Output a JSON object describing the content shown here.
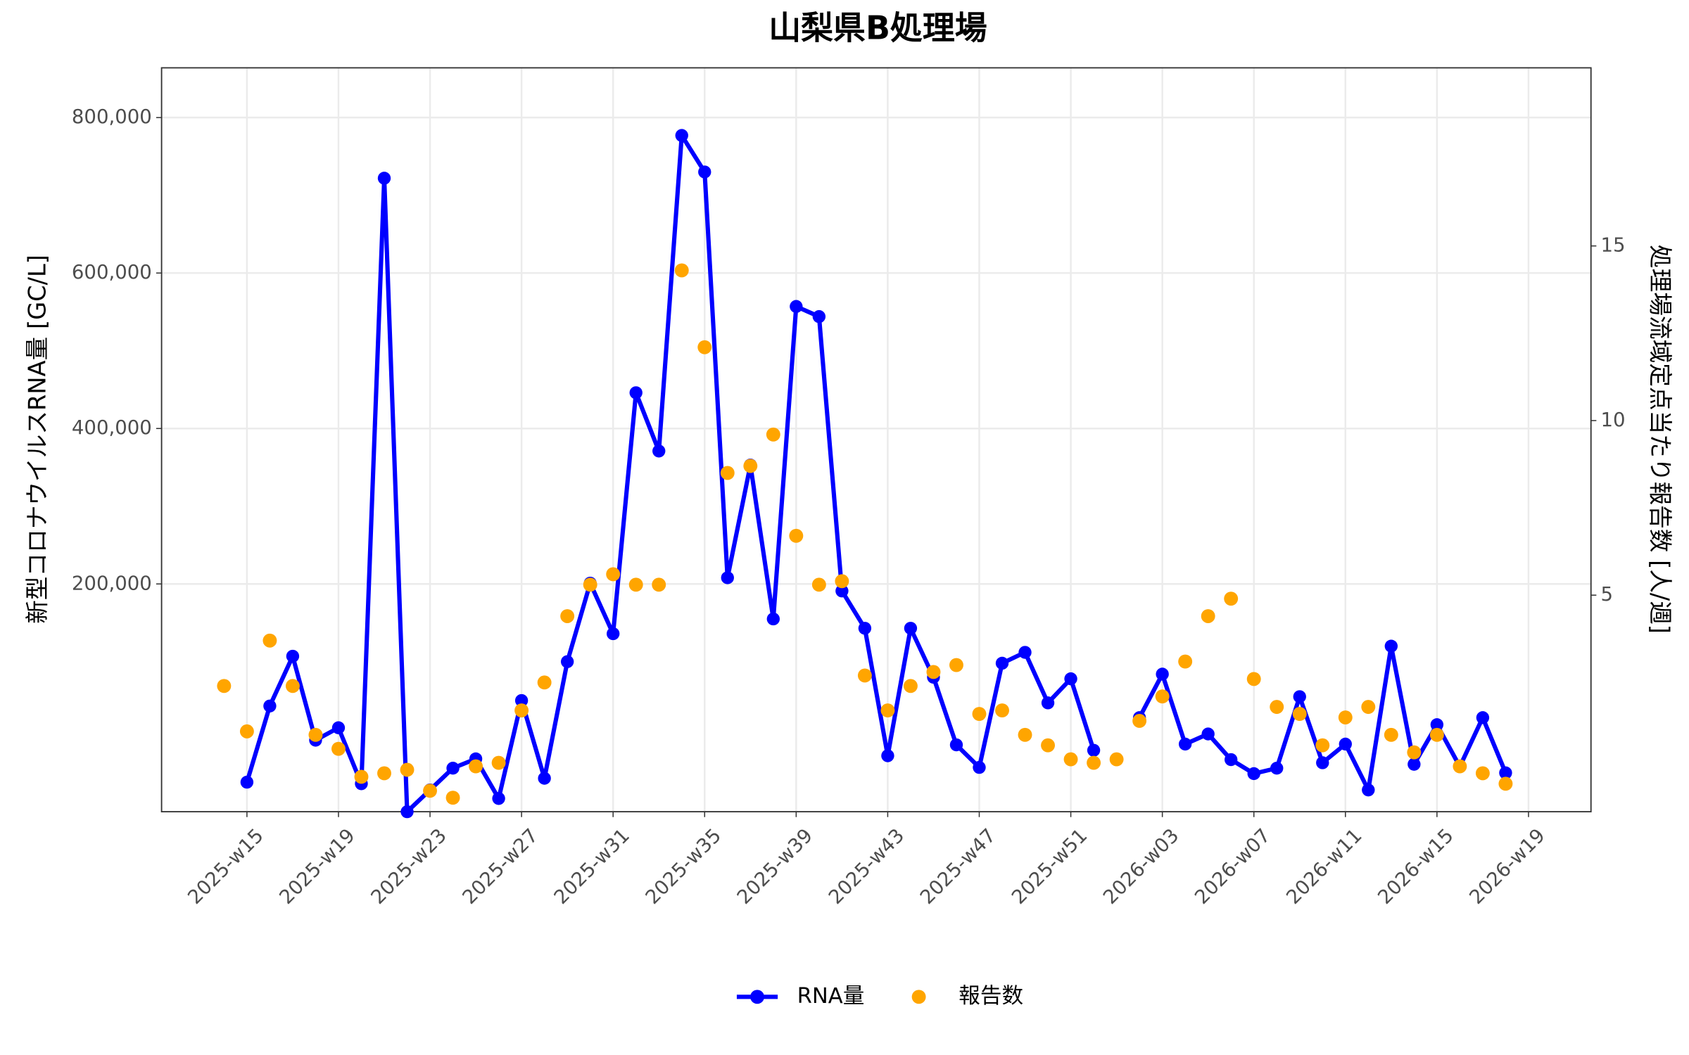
{
  "chart_data": {
    "type": "line",
    "title": "山梨県B処理場",
    "y_label": "新型コロナウイルスRNA量 [GC/L]",
    "y2_label": "処理場流域定点当たり報告数 [人/週]",
    "categories": [
      null,
      "2025-w15",
      null,
      null,
      null,
      "2025-w19",
      null,
      null,
      null,
      "2025-w23",
      null,
      null,
      null,
      "2025-w27",
      null,
      null,
      null,
      "2025-w31",
      null,
      null,
      null,
      "2025-w35",
      null,
      null,
      null,
      "2025-w39",
      null,
      null,
      null,
      "2025-w43",
      null,
      null,
      null,
      "2025-w47",
      null,
      null,
      null,
      "2025-w51",
      null,
      null,
      null,
      "2026-w03",
      null,
      null,
      null,
      "2026-w07",
      null,
      null,
      null,
      "2026-w11",
      null,
      null,
      null,
      "2026-w15",
      null,
      null,
      null,
      "2026-w19"
    ],
    "ylim": [
      -93000,
      864000
    ],
    "yticks": [
      {
        "value": 200000,
        "label": "200,000"
      },
      {
        "value": 400000,
        "label": "400,000"
      },
      {
        "value": 600000,
        "label": "600,000"
      },
      {
        "value": 800000,
        "label": "800,000"
      }
    ],
    "y2lim": [
      -1.2,
      20.1
    ],
    "y2ticks": [
      5,
      10,
      15
    ],
    "grid": true,
    "legend": "bottom",
    "series": [
      {
        "name": "RNA量",
        "type": "line",
        "color": "#0000ff",
        "values": [
          null,
          -55000,
          43000,
          107000,
          -1000,
          15000,
          -57000,
          722000,
          -93000,
          -65000,
          -37000,
          -25000,
          -76000,
          50000,
          -50000,
          100000,
          201000,
          136000,
          446000,
          371000,
          777000,
          730000,
          208000,
          353000,
          155000,
          557000,
          544000,
          191000,
          143000,
          -21000,
          143000,
          80000,
          -7000,
          -36000,
          98000,
          112000,
          47000,
          78000,
          -14000,
          null,
          28000,
          84000,
          -6000,
          7000,
          -26000,
          -44000,
          -37000,
          55000,
          -30000,
          -6000,
          -65000,
          120000,
          -32000,
          19000,
          -35000,
          28000,
          -43000,
          null
        ]
      },
      {
        "name": "報告数",
        "type": "scatter",
        "axis": "y2",
        "color": "#ffa500",
        "values": [
          2.4,
          1.1,
          3.7,
          2.4,
          1.0,
          0.6,
          -0.2,
          -0.1,
          0.0,
          -0.6,
          -0.8,
          0.1,
          0.2,
          1.7,
          2.5,
          4.4,
          5.3,
          5.6,
          5.3,
          5.3,
          14.3,
          12.1,
          8.5,
          8.7,
          9.6,
          6.7,
          5.3,
          5.4,
          2.7,
          1.7,
          2.4,
          2.8,
          3.0,
          1.6,
          1.7,
          1.0,
          0.7,
          0.3,
          0.2,
          0.3,
          1.4,
          2.1,
          3.1,
          4.4,
          4.9,
          2.6,
          1.8,
          1.6,
          0.7,
          1.5,
          1.8,
          1.0,
          0.5,
          1.0,
          0.1,
          -0.1,
          -0.4,
          null
        ]
      }
    ]
  }
}
